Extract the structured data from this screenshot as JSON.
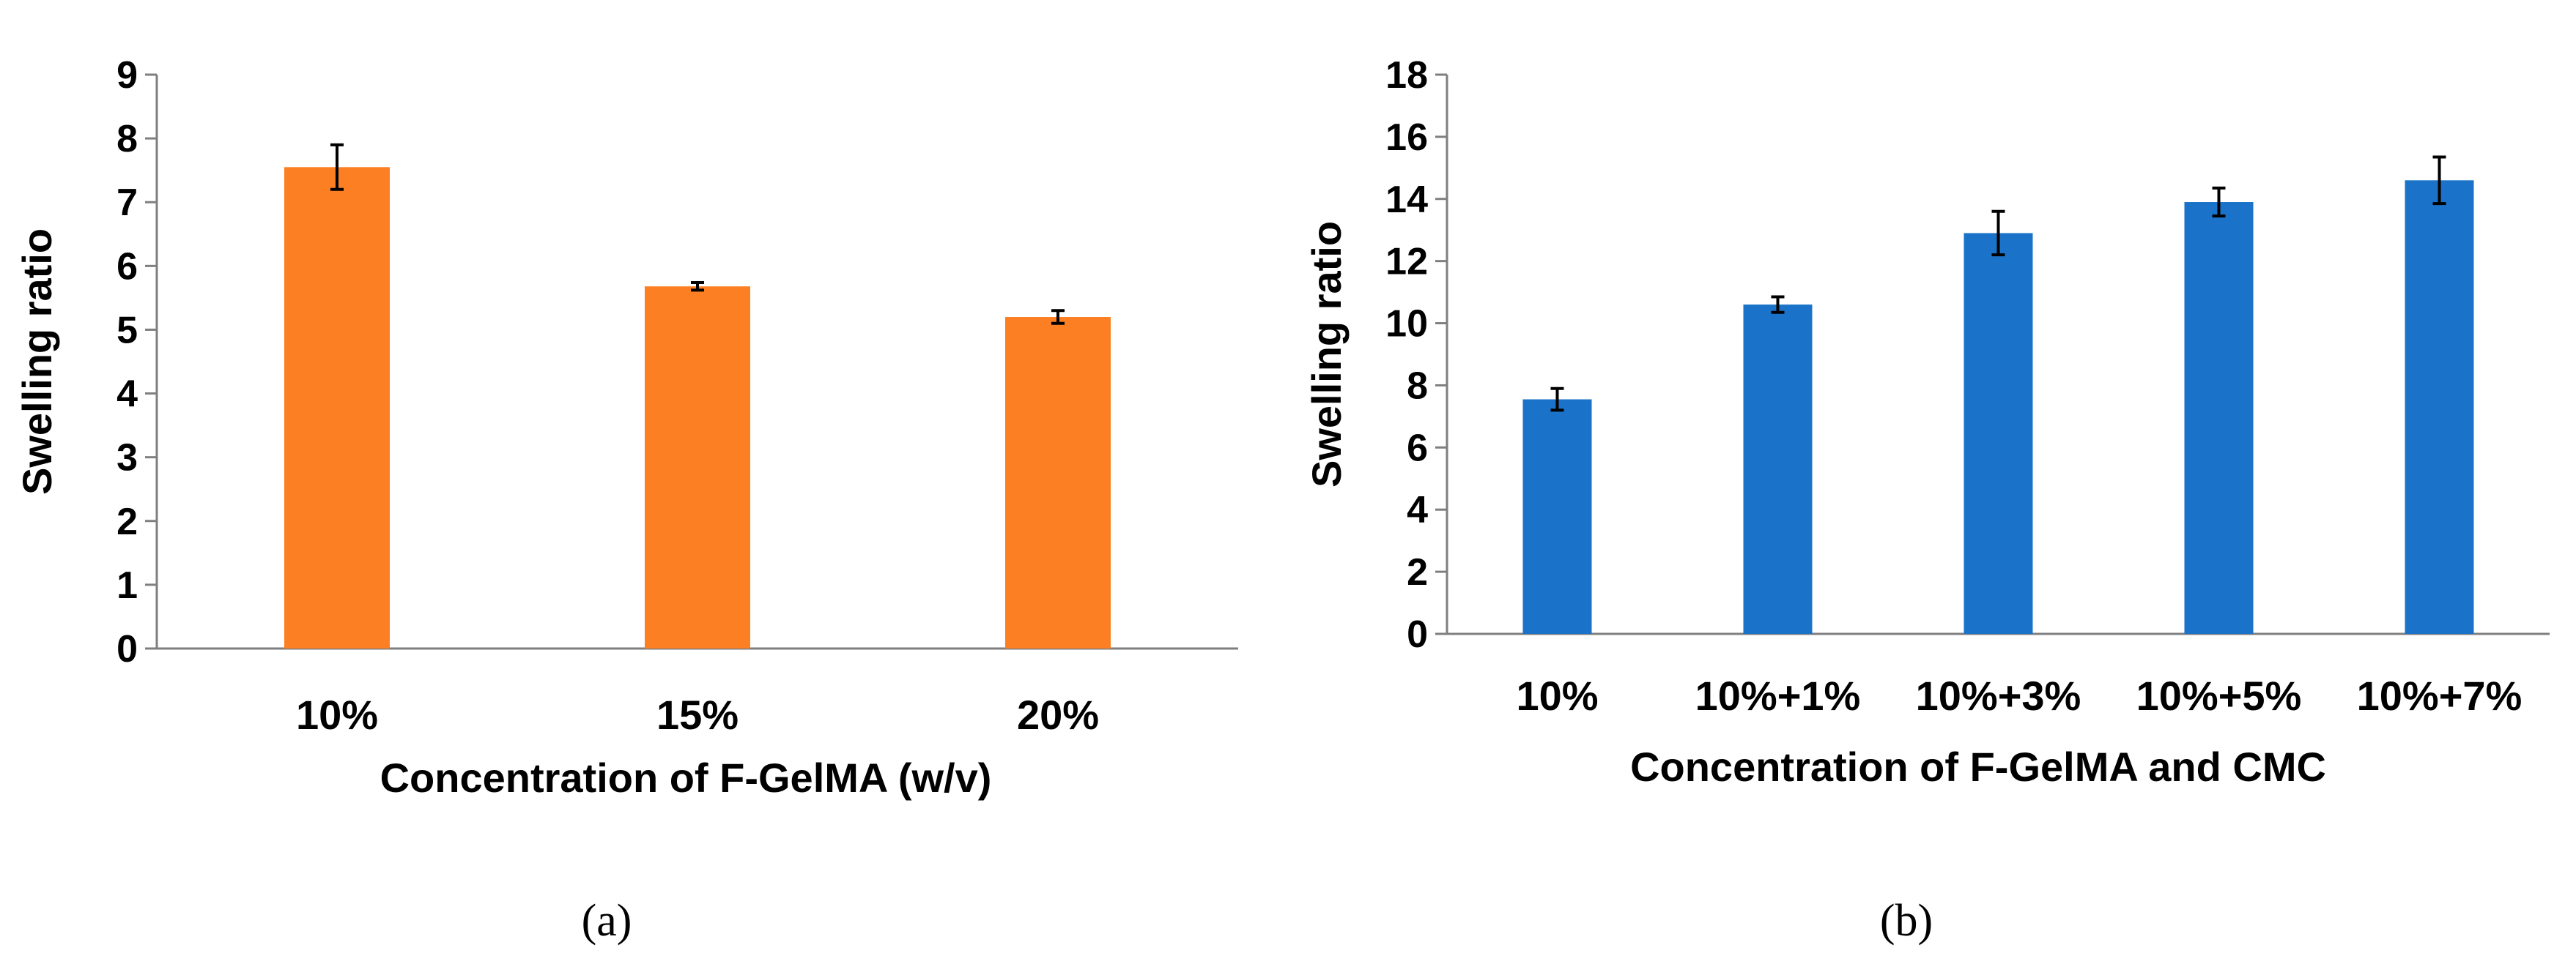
{
  "colors": {
    "panel_a_bar": "#FD7F23",
    "panel_b_bar": "#1A73C8",
    "axis": "#7F7F7F",
    "error_bar": "#000000"
  },
  "chart_data": [
    {
      "panel_label": "(a)",
      "type": "bar",
      "categories": [
        "10%",
        "15%",
        "20%"
      ],
      "values": [
        7.55,
        5.68,
        5.2
      ],
      "errors": [
        0.35,
        0.06,
        0.1
      ],
      "xlabel": "Concentration of F-GelMA (w/v)",
      "ylabel": "Swelling ratio",
      "ylim": [
        0,
        9
      ],
      "yticks": [
        0,
        1,
        2,
        3,
        4,
        5,
        6,
        7,
        8,
        9
      ],
      "grid": false,
      "legend": "none"
    },
    {
      "panel_label": "(b)",
      "type": "bar",
      "categories": [
        "10%",
        "10%+1%",
        "10%+3%",
        "10%+5%",
        "10%+7%"
      ],
      "values": [
        7.55,
        10.6,
        12.9,
        13.9,
        14.6
      ],
      "errors": [
        0.35,
        0.25,
        0.7,
        0.45,
        0.75
      ],
      "xlabel": "Concentration of F-GelMA and CMC",
      "ylabel": "Swelling ratio",
      "ylim": [
        0,
        18
      ],
      "yticks": [
        0,
        2,
        4,
        6,
        8,
        10,
        12,
        14,
        16,
        18
      ],
      "grid": false,
      "legend": "none"
    }
  ]
}
